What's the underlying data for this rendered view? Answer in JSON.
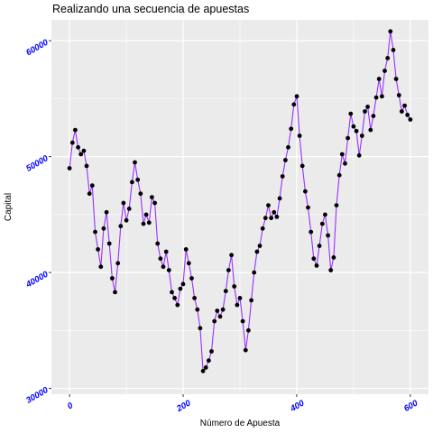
{
  "chart_data": {
    "type": "line",
    "title": "Realizando una secuencia de apuestas",
    "xlabel": "Número de Apuesta",
    "ylabel": "Capital",
    "xlim": [
      -32,
      632
    ],
    "ylim": [
      29500,
      61800
    ],
    "x_ticks": [
      0,
      200,
      400,
      600
    ],
    "x_tick_labels": [
      "0",
      "200",
      "400",
      "600"
    ],
    "y_ticks": [
      30000,
      40000,
      50000,
      60000
    ],
    "y_tick_labels": [
      "30000",
      "40000",
      "50000",
      "60000"
    ],
    "grid": true,
    "legend": "none",
    "colors": {
      "line": "#9b30ff",
      "points": "#000000",
      "panel_background": "#ebebeb",
      "gridlines": "#ffffff",
      "tick_labels": "#0000ff"
    },
    "series": [
      {
        "x": [
          0,
          5,
          10,
          15,
          20,
          25,
          30,
          35,
          40,
          45,
          50,
          55,
          60,
          65,
          70,
          75,
          80,
          85,
          90,
          95,
          100,
          105,
          110,
          115,
          120,
          125,
          130,
          135,
          140,
          145,
          150,
          155,
          160,
          165,
          170,
          175,
          180,
          185,
          190,
          195,
          200,
          205,
          210,
          215,
          220,
          225,
          230,
          235,
          240,
          245,
          250,
          255,
          260,
          265,
          270,
          275,
          280,
          285,
          290,
          295,
          300,
          305,
          310,
          315,
          320,
          325,
          330,
          335,
          340,
          345,
          350,
          355,
          360,
          365,
          370,
          375,
          380,
          385,
          390,
          395,
          400,
          405,
          410,
          415,
          420,
          425,
          430,
          435,
          440,
          445,
          450,
          455,
          460,
          465,
          470,
          475,
          480,
          485,
          490,
          495,
          500,
          505,
          510,
          515,
          520,
          525,
          530,
          535,
          540,
          545,
          550,
          555,
          560,
          565,
          570,
          575,
          580,
          585,
          590,
          595,
          600
        ],
        "y": [
          49000,
          51200,
          52300,
          50800,
          50200,
          50500,
          49200,
          46800,
          47500,
          43500,
          42000,
          40500,
          43800,
          45200,
          42500,
          39500,
          38300,
          40800,
          44000,
          46000,
          44500,
          45500,
          47800,
          49500,
          48000,
          46800,
          44200,
          45000,
          44300,
          46500,
          46000,
          42500,
          41200,
          40500,
          41800,
          40200,
          38300,
          37800,
          37200,
          38600,
          39000,
          42000,
          40800,
          39500,
          37800,
          36800,
          35200,
          31500,
          31800,
          32400,
          33200,
          35800,
          36700,
          36200,
          36800,
          38400,
          40200,
          41500,
          38800,
          37200,
          37800,
          35800,
          33300,
          35000,
          37600,
          40000,
          41800,
          42300,
          43800,
          44700,
          45800,
          44700,
          45200,
          44800,
          46400,
          48300,
          49700,
          50800,
          52400,
          54500,
          55200,
          51800,
          49200,
          47000,
          45600,
          43500,
          41200,
          40600,
          42300,
          44200,
          45000,
          43200,
          40200,
          41300,
          45800,
          48400,
          50200,
          49400,
          51600,
          53700,
          52600,
          52200,
          50100,
          51800,
          53900,
          54300,
          52300,
          53500,
          55100,
          56700,
          55200,
          57400,
          58500,
          60800,
          59200,
          56700,
          55300,
          53900,
          54400,
          53600,
          53200
        ]
      }
    ]
  }
}
